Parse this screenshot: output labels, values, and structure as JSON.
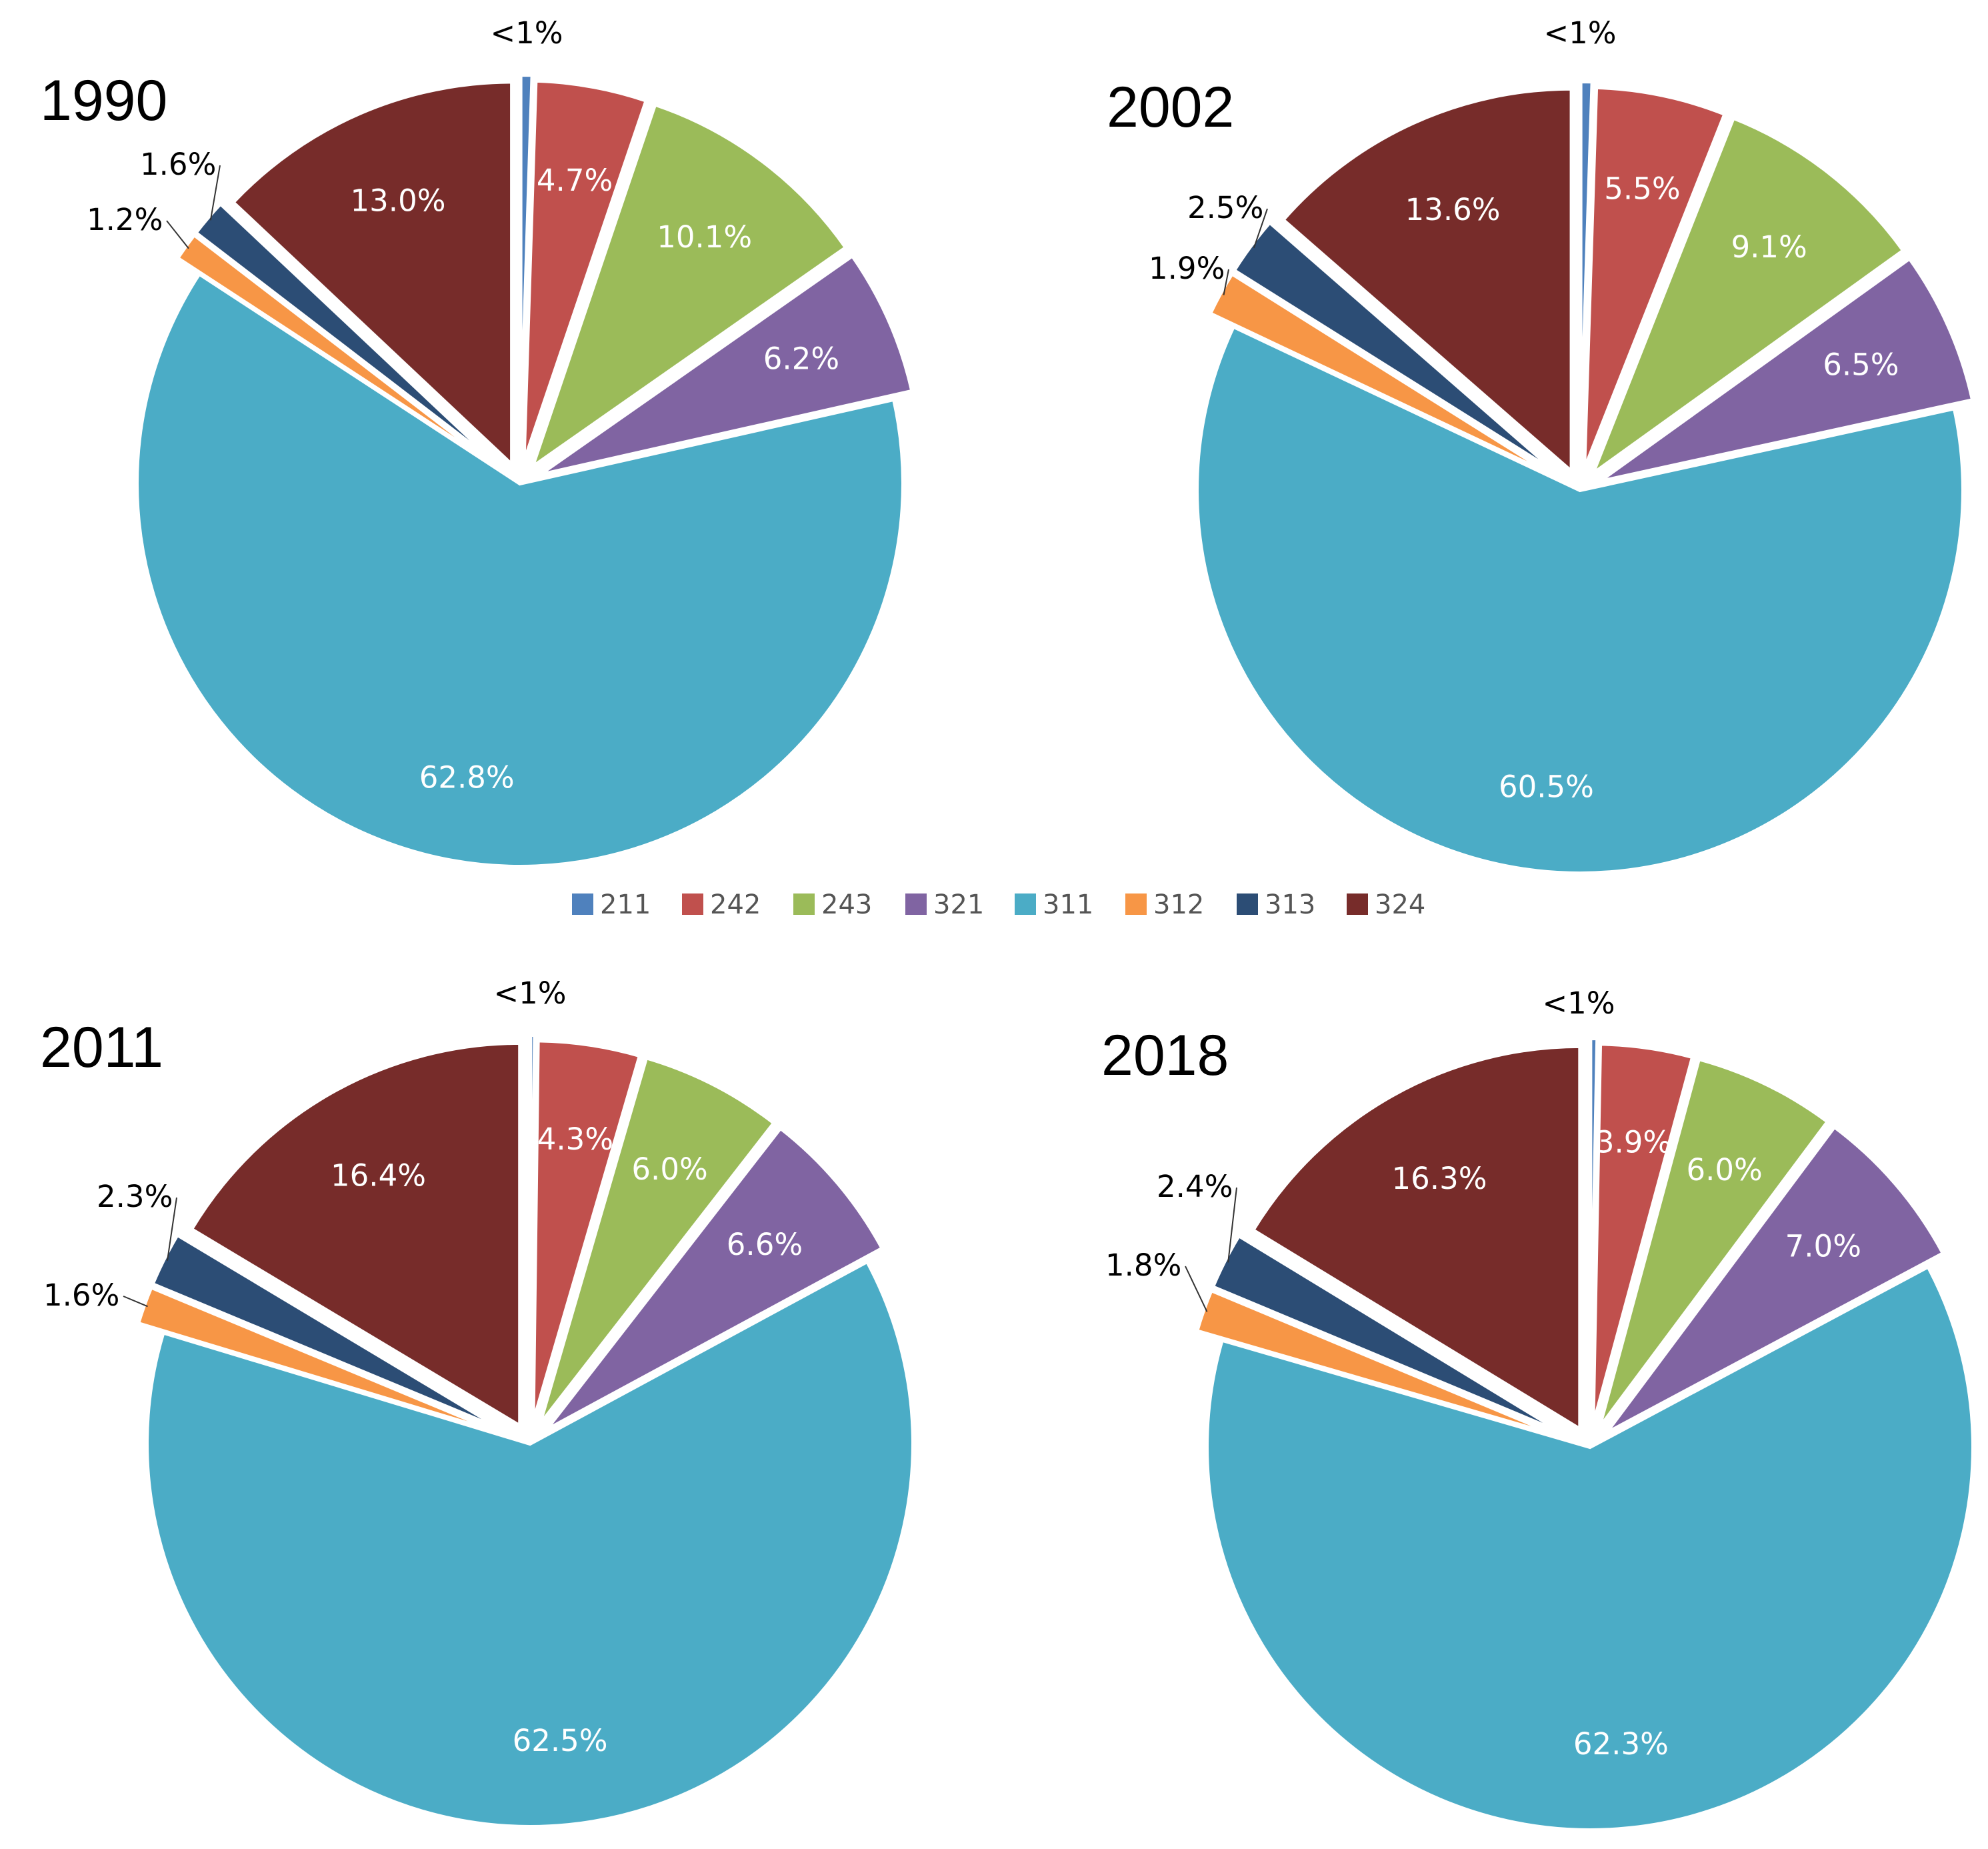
{
  "chart_data": [
    {
      "type": "pie",
      "title": "1990",
      "categories": [
        "211",
        "242",
        "243",
        "321",
        "311",
        "312",
        "313",
        "324"
      ],
      "values": [
        0.5,
        4.7,
        10.1,
        6.2,
        62.8,
        1.2,
        1.6,
        13.0
      ],
      "labels": [
        "<1%",
        "4.7%",
        "10.1%",
        "6.2%",
        "62.8%",
        "1.2%",
        "1.6%",
        "13.0%"
      ]
    },
    {
      "type": "pie",
      "title": "2002",
      "categories": [
        "211",
        "242",
        "243",
        "321",
        "311",
        "312",
        "313",
        "324"
      ],
      "values": [
        0.5,
        5.5,
        9.1,
        6.5,
        60.5,
        1.9,
        2.5,
        13.6
      ],
      "labels": [
        "<1%",
        "5.5%",
        "9.1%",
        "6.5%",
        "60.5%",
        "1.9%",
        "2.5%",
        "13.6%"
      ]
    },
    {
      "type": "pie",
      "title": "2011",
      "categories": [
        "211",
        "242",
        "243",
        "321",
        "311",
        "312",
        "313",
        "324"
      ],
      "values": [
        0.2,
        4.3,
        6.0,
        6.6,
        62.5,
        1.6,
        2.3,
        16.4
      ],
      "labels": [
        "<1%",
        "4.3%",
        "6.0%",
        "6.6%",
        "62.5%",
        "1.6%",
        "2.3%",
        "16.4%"
      ]
    },
    {
      "type": "pie",
      "title": "2018",
      "categories": [
        "211",
        "242",
        "243",
        "321",
        "311",
        "312",
        "313",
        "324"
      ],
      "values": [
        0.3,
        3.9,
        6.0,
        7.0,
        62.3,
        1.8,
        2.4,
        16.3
      ],
      "labels": [
        "<1%",
        "3.9%",
        "6.0%",
        "7.0%",
        "62.3%",
        "1.8%",
        "2.4%",
        "16.3%"
      ]
    }
  ],
  "legend": {
    "entries": [
      "211",
      "242",
      "243",
      "321",
      "311",
      "312",
      "313",
      "324"
    ],
    "colors": [
      "#4f81bd",
      "#c0504d",
      "#9bbb59",
      "#8064a2",
      "#4bacc6",
      "#f79646",
      "#2c4d75",
      "#772c2a"
    ]
  }
}
